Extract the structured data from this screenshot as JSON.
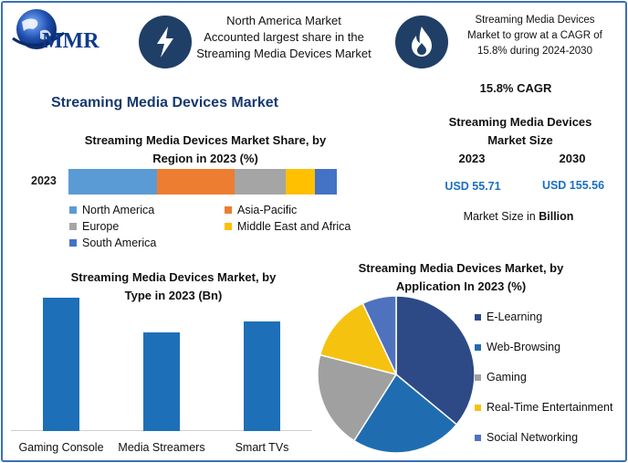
{
  "header": {
    "logo_text": "MMR",
    "highlight_1": [
      "North America Market",
      "Accounted largest share in the",
      "Streaming Media Devices Market"
    ],
    "highlight_2": [
      "Streaming Media Devices",
      "Market to grow at a CAGR of",
      "15.8% during 2024-2030"
    ],
    "icon_1": "lightning-icon",
    "icon_2": "flame-icon"
  },
  "main_title": "Streaming Media Devices Market",
  "summary": {
    "cagr": "15.8% CAGR",
    "size_title_1": "Streaming Media Devices",
    "size_title_2": "Market Size",
    "year_a": "2023",
    "year_b": "2030",
    "value_a": "USD 55.71",
    "value_b": "USD 155.56",
    "unit_prefix": "Market Size in ",
    "unit_bold": "Billion"
  },
  "colors": {
    "frame": "#3b6fb6",
    "icon_bg": "#1f3f66",
    "bar_type": "#1d6fb8",
    "usd_text": "#1a6fc0"
  },
  "chart_data": [
    {
      "id": "region",
      "type": "bar",
      "orientation": "horizontal-stacked",
      "title_lines": [
        "Streaming Media Devices Market Share, by",
        "Region in 2023 (%)"
      ],
      "categories": [
        "2023"
      ],
      "series": [
        {
          "name": "North America",
          "values": [
            33
          ],
          "color": "#5b9bd5"
        },
        {
          "name": "Asia-Pacific",
          "values": [
            29
          ],
          "color": "#ed7d31"
        },
        {
          "name": "Europe",
          "values": [
            19
          ],
          "color": "#a5a5a5"
        },
        {
          "name": "Middle East and Africa",
          "values": [
            11
          ],
          "color": "#ffc000"
        },
        {
          "name": "South America",
          "values": [
            8
          ],
          "color": "#4472c4"
        }
      ],
      "legend_placement": "bottom",
      "grid": false
    },
    {
      "id": "type",
      "type": "bar",
      "title_lines": [
        "Streaming Media Devices Market, by",
        "Type in 2023 (Bn)"
      ],
      "categories": [
        "Gaming Console",
        "Media Streamers",
        "Smart TVs"
      ],
      "values": [
        25,
        18.5,
        20.5
      ],
      "ylim": [
        0,
        25
      ],
      "grid": false,
      "color": "#1d6fb8"
    },
    {
      "id": "application",
      "type": "pie",
      "title_lines": [
        "Streaming Media Devices Market, by",
        "Application In 2023 (%)"
      ],
      "categories": [
        "E-Learning",
        "Web-Browsing",
        "Gaming",
        "Real-Time Entertainment",
        "Social Networking"
      ],
      "values": [
        36,
        23,
        20,
        14,
        7
      ],
      "colors": [
        "#2e4a86",
        "#1f6db0",
        "#a0a0a0",
        "#f5c210",
        "#4f72bf"
      ],
      "legend_placement": "right"
    }
  ]
}
